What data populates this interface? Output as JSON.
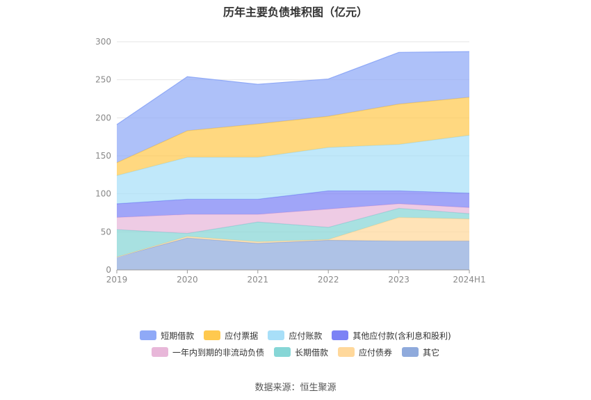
{
  "chart_data": {
    "type": "area",
    "title": "历年主要负债堆积图（亿元）",
    "categories": [
      "2019",
      "2020",
      "2021",
      "2022",
      "2023",
      "2024H1"
    ],
    "ylim": [
      0,
      300
    ],
    "yticks": [
      0,
      50,
      100,
      150,
      200,
      250,
      300
    ],
    "grid": true,
    "legend_position": "bottom",
    "series": [
      {
        "name": "其它",
        "color": "#8faadc",
        "values": [
          17,
          42,
          35,
          39,
          38,
          38
        ]
      },
      {
        "name": "应付债券",
        "color": "#ffd89b",
        "values": [
          0,
          2,
          2,
          1,
          31,
          29
        ]
      },
      {
        "name": "长期借款",
        "color": "#86d6d6",
        "values": [
          36,
          4,
          26,
          16,
          12,
          7
        ]
      },
      {
        "name": "一年内到期的非流动负债",
        "color": "#e8b7d9",
        "values": [
          16,
          25,
          10,
          24,
          6,
          8
        ]
      },
      {
        "name": "其他应付款(含利息和股利)",
        "color": "#7c82f5",
        "values": [
          18,
          20,
          20,
          24,
          17,
          19
        ]
      },
      {
        "name": "应付账款",
        "color": "#a8dff8",
        "values": [
          37,
          55,
          55,
          57,
          61,
          76
        ]
      },
      {
        "name": "应付票据",
        "color": "#ffc94f",
        "values": [
          17,
          35,
          44,
          41,
          53,
          50
        ]
      },
      {
        "name": "短期借款",
        "color": "#8fa9f7",
        "values": [
          50,
          71,
          52,
          49,
          68,
          60
        ]
      }
    ]
  },
  "legend_rows": [
    [
      "短期借款",
      "应付票据",
      "应付账款",
      "其他应付款(含利息和股利)"
    ],
    [
      "一年内到期的非流动负债",
      "长期借款",
      "应付债券",
      "其它"
    ]
  ],
  "source": "数据来源：恒生聚源"
}
